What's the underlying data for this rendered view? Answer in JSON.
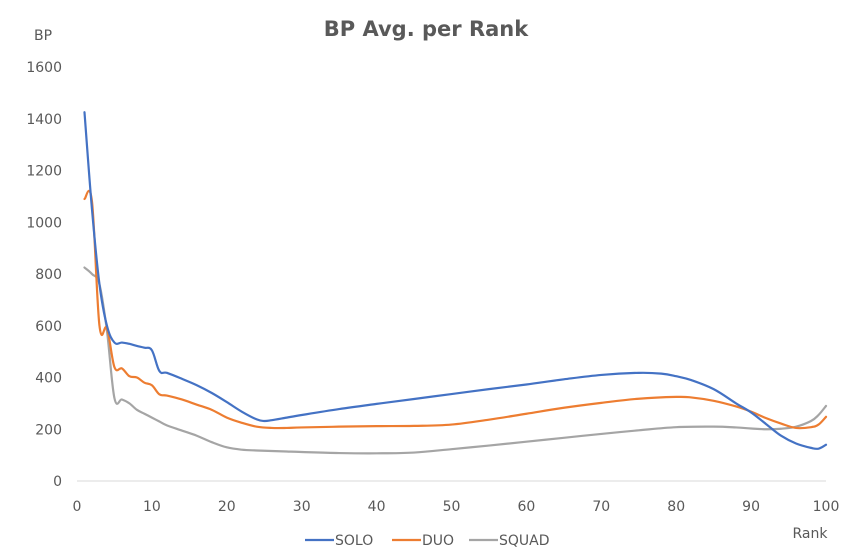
{
  "chart_data": {
    "type": "line",
    "title": "BP Avg. per Rank",
    "xlabel": "Rank",
    "ylabel": "BP",
    "xlim": [
      0,
      100
    ],
    "ylim": [
      0,
      1600
    ],
    "xticks": [
      0,
      10,
      20,
      30,
      40,
      50,
      60,
      70,
      80,
      90,
      100
    ],
    "yticks": [
      0,
      200,
      400,
      600,
      800,
      1000,
      1200,
      1400,
      1600
    ],
    "grid": false,
    "legend_position": "bottom",
    "series": [
      {
        "name": "SOLO",
        "color": "#4472C4",
        "x": [
          1,
          2,
          3,
          4,
          5,
          6,
          7,
          8,
          9,
          10,
          11,
          12,
          14,
          16,
          18,
          20,
          22,
          24,
          25,
          26,
          28,
          30,
          35,
          40,
          45,
          50,
          55,
          60,
          65,
          70,
          75,
          78,
          80,
          82,
          85,
          88,
          90,
          92,
          94,
          96,
          98,
          99,
          100
        ],
        "y": [
          1425,
          1050,
          760,
          600,
          535,
          535,
          530,
          522,
          515,
          505,
          425,
          418,
          395,
          370,
          340,
          305,
          268,
          238,
          232,
          235,
          245,
          255,
          278,
          298,
          317,
          336,
          355,
          373,
          393,
          410,
          418,
          415,
          405,
          390,
          355,
          300,
          265,
          220,
          175,
          145,
          128,
          125,
          140
        ]
      },
      {
        "name": "DUO",
        "color": "#ED7D31",
        "x": [
          1,
          2,
          3,
          4,
          5,
          6,
          7,
          8,
          9,
          10,
          11,
          12,
          14,
          16,
          18,
          20,
          22,
          24,
          26,
          28,
          30,
          35,
          40,
          45,
          50,
          55,
          60,
          65,
          70,
          75,
          80,
          82,
          85,
          88,
          90,
          92,
          94,
          96,
          98,
          99,
          100
        ],
        "y": [
          1090,
          1080,
          600,
          590,
          440,
          435,
          405,
          400,
          380,
          370,
          335,
          330,
          315,
          295,
          275,
          245,
          225,
          210,
          205,
          205,
          207,
          210,
          212,
          213,
          218,
          237,
          260,
          283,
          302,
          318,
          325,
          323,
          310,
          288,
          268,
          243,
          222,
          205,
          208,
          218,
          248
        ]
      },
      {
        "name": "SQUAD",
        "color": "#A5A5A5",
        "x": [
          1,
          2,
          3,
          4,
          5,
          6,
          7,
          8,
          9,
          10,
          11,
          12,
          14,
          16,
          18,
          20,
          22,
          24,
          26,
          28,
          30,
          35,
          40,
          45,
          50,
          55,
          60,
          65,
          70,
          75,
          80,
          85,
          88,
          90,
          92,
          94,
          96,
          98,
          99,
          100
        ],
        "y": [
          825,
          800,
          760,
          580,
          320,
          315,
          300,
          275,
          260,
          245,
          230,
          215,
          195,
          175,
          150,
          130,
          121,
          118,
          116,
          114,
          112,
          108,
          107,
          110,
          123,
          137,
          152,
          167,
          182,
          196,
          208,
          210,
          207,
          203,
          200,
          202,
          210,
          232,
          255,
          290
        ]
      }
    ]
  }
}
